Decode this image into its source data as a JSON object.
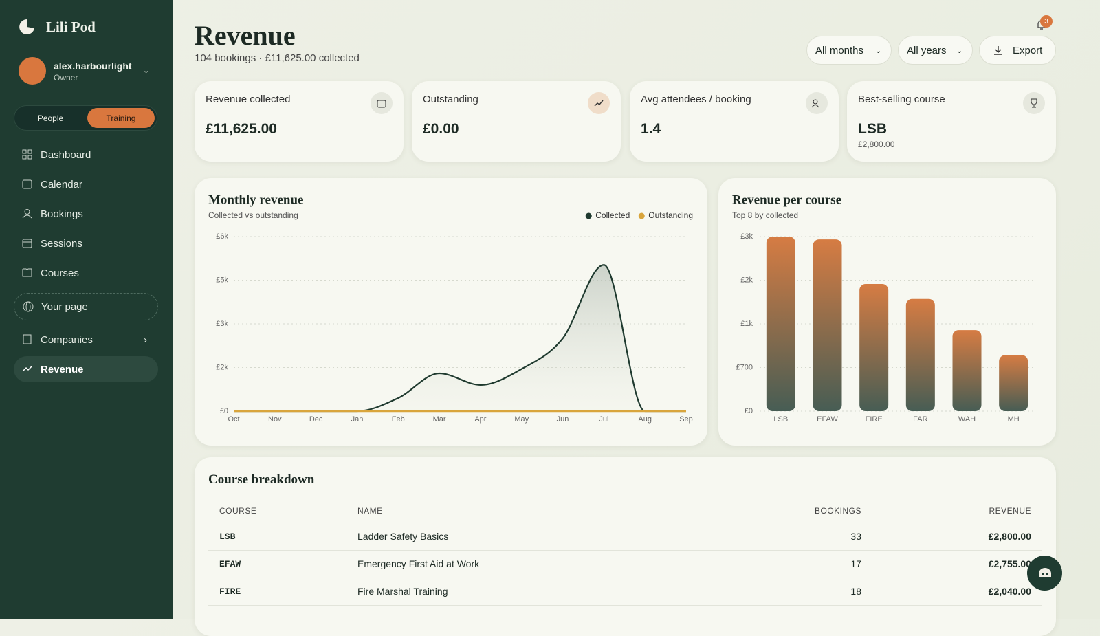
{
  "brand": "Lili Pod",
  "user": {
    "name": "alex.harbourlight",
    "role": "Owner"
  },
  "toggle": [
    "People",
    "Training"
  ],
  "nav": [
    "Dashboard",
    "Calendar",
    "Bookings",
    "Sessions",
    "Courses",
    "Your page",
    "Companies",
    "Revenue"
  ],
  "header": {
    "title": "Revenue",
    "subtitle": "104 bookings · £11,625.00 collected",
    "filters": [
      "All months",
      "All years"
    ],
    "export": "Export",
    "notifications": 3
  },
  "stats": [
    {
      "label": "Revenue collected",
      "value": "£11,625.00"
    },
    {
      "label": "Outstanding",
      "value": "£0.00"
    },
    {
      "label": "Avg attendees / booking",
      "value": "1.4"
    },
    {
      "label": "Best-selling course",
      "value": "LSB",
      "note": "£2,800.00"
    }
  ],
  "chart_data": [
    {
      "type": "line",
      "title": "Monthly revenue",
      "subtitle": "Collected vs outstanding",
      "categories": [
        "Oct",
        "Nov",
        "Dec",
        "Jan",
        "Feb",
        "Mar",
        "Apr",
        "May",
        "Jun",
        "Jul",
        "Aug",
        "Sep"
      ],
      "series": [
        {
          "name": "Collected",
          "color": "#1f3a2f",
          "values": [
            0,
            0,
            0,
            0,
            450,
            1300,
            900,
            1450,
            2500,
            5025,
            0,
            0
          ]
        },
        {
          "name": "Outstanding",
          "color": "#d9a53c",
          "values": [
            0,
            0,
            0,
            0,
            0,
            0,
            0,
            0,
            0,
            0,
            0,
            0
          ]
        }
      ],
      "ylim": [
        0,
        6000
      ],
      "yticks": [
        {
          "value": 0,
          "label": "£0"
        },
        {
          "value": 1500,
          "label": "£2k"
        },
        {
          "value": 3000,
          "label": "£3k"
        },
        {
          "value": 4500,
          "label": "£5k"
        },
        {
          "value": 6000,
          "label": "£6k"
        }
      ],
      "grid": true,
      "legend": "top-right"
    },
    {
      "type": "bar",
      "title": "Revenue per course",
      "subtitle": "Top 8 by collected",
      "categories": [
        "LSB",
        "EFAW",
        "FIRE",
        "FAR",
        "WAH",
        "MH"
      ],
      "values": [
        2800,
        2755,
        2040,
        1800,
        1300,
        900
      ],
      "gradient": [
        "#d67c43",
        "#475d54"
      ],
      "ylim": [
        0,
        2800
      ],
      "yticks": [
        {
          "value": 0,
          "label": "£0"
        },
        {
          "value": 700,
          "label": "£700"
        },
        {
          "value": 1400,
          "label": "£1k"
        },
        {
          "value": 2100,
          "label": "£2k"
        },
        {
          "value": 2800,
          "label": "£3k"
        }
      ],
      "grid": true
    }
  ],
  "table": {
    "title": "Course breakdown",
    "columns": [
      "COURSE",
      "NAME",
      "BOOKINGS",
      "REVENUE"
    ],
    "rows": [
      [
        "LSB",
        "Ladder Safety Basics",
        "33",
        "£2,800.00"
      ],
      [
        "EFAW",
        "Emergency First Aid at Work",
        "17",
        "£2,755.00"
      ],
      [
        "FIRE",
        "Fire Marshal Training",
        "18",
        "£2,040.00"
      ]
    ]
  }
}
